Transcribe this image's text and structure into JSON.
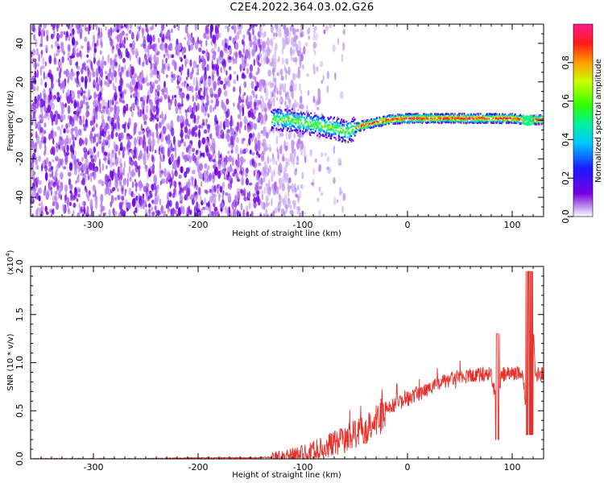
{
  "title": "C2E4.2022.364.03.02.G26",
  "chart_data": [
    {
      "type": "heatmap",
      "xlabel": "Height of straight line (km)",
      "ylabel": "Frequency (Hz)",
      "xlim": [
        -360,
        130
      ],
      "ylim": [
        -50,
        50
      ],
      "xticks": [
        -300,
        -200,
        -100,
        0,
        100
      ],
      "yticks": [
        -40,
        -20,
        0,
        20,
        40
      ],
      "grid": false,
      "colorbar": {
        "label": "Normalized spectral amplitude",
        "range": [
          0,
          1
        ],
        "ticks": [
          "0.0",
          "0.2",
          "0.4",
          "0.6",
          "0.8"
        ],
        "colormap": "rainbow (white → violet → blue → cyan → green → yellow → red → magenta)"
      },
      "features": {
        "noise_region_x": [
          -360,
          -100
        ],
        "signal_track": {
          "x": [
            -130,
            -110,
            -90,
            -70,
            -58,
            -45,
            -30,
            -15,
            0,
            20,
            40,
            60,
            80,
            100,
            115,
            130
          ],
          "frequency_hz": [
            0.5,
            0,
            -2,
            -4,
            -6,
            -3,
            -1,
            0.5,
            1,
            1,
            1,
            1,
            1,
            1,
            0,
            0.5
          ]
        }
      }
    },
    {
      "type": "line",
      "xlabel": "Height of straight line (km)",
      "ylabel": "SNR (10 * v/v)",
      "y_multiplier": "(x10^4)",
      "xlim": [
        -360,
        130
      ],
      "ylim": [
        0,
        2.0
      ],
      "xticks": [
        -300,
        -200,
        -100,
        0,
        100
      ],
      "yticks": [
        "0.0",
        "0.5",
        "1.0",
        "1.5",
        "2.0"
      ],
      "color": "#e8302a",
      "grid": false,
      "series": [
        {
          "x": [
            -360,
            -300,
            -250,
            -200,
            -150,
            -120,
            -100,
            -80,
            -60,
            -45,
            -30,
            -20,
            -10,
            0,
            10,
            20,
            30,
            40,
            50,
            60,
            70,
            80,
            85,
            90,
            100,
            110,
            115,
            118,
            122,
            130
          ],
          "y": [
            0.0,
            0.0,
            0.0,
            0.01,
            0.01,
            0.02,
            0.05,
            0.12,
            0.2,
            0.28,
            0.4,
            0.5,
            0.58,
            0.62,
            0.68,
            0.72,
            0.78,
            0.82,
            0.85,
            0.87,
            0.88,
            0.88,
            0.6,
            0.88,
            0.89,
            0.89,
            0.3,
            1.9,
            0.88,
            0.88
          ]
        }
      ]
    }
  ]
}
